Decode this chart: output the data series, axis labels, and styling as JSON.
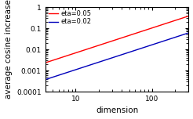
{
  "title": "",
  "xlabel": "dimension",
  "ylabel": "average cosine increase",
  "xlim": [
    4,
    300
  ],
  "ylim": [
    0.0001,
    1
  ],
  "color1": "#ff0000",
  "color2": "#0000bb",
  "label1": "eta=0.05",
  "label2": "eta=0.02",
  "legend_fontsize": 6.0,
  "axis_fontsize": 7.5,
  "tick_fontsize": 6.5,
  "K1": 0.00045,
  "K2": 7.2e-05,
  "alpha1": 1.18,
  "alpha2": 1.18,
  "background_color": "#ffffff"
}
